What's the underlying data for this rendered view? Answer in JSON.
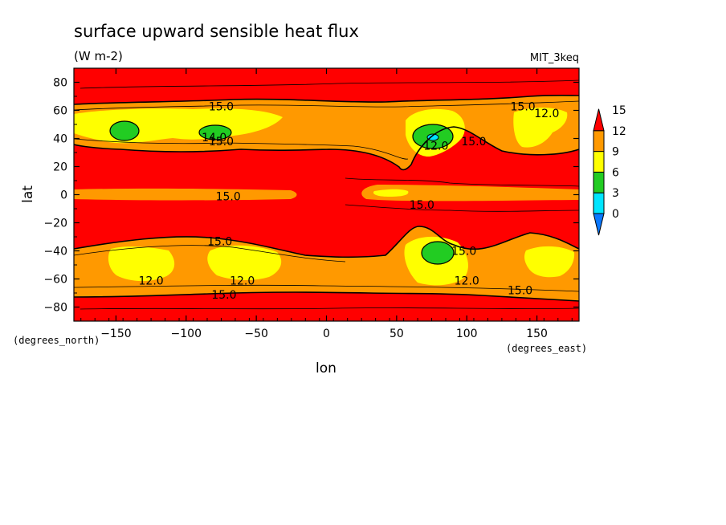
{
  "chart_data": {
    "type": "heatmap",
    "title": "surface upward sensible heat flux",
    "units": "(W m-2)",
    "model": "MIT_3keq",
    "xlabel": "lon",
    "ylabel": "lat",
    "x_units": "(degrees_east)",
    "y_units": "(degrees_north)",
    "xlim": [
      -180,
      180
    ],
    "ylim": [
      -90,
      90
    ],
    "x_ticks": [
      -150,
      -100,
      -50,
      0,
      50,
      100,
      150
    ],
    "y_ticks": [
      80,
      60,
      40,
      20,
      0,
      -20,
      -40,
      -60,
      -80
    ],
    "x_tick_labels": [
      "−150",
      "−100",
      "−50",
      "0",
      "50",
      "100",
      "150"
    ],
    "y_tick_labels": [
      "80",
      "60",
      "40",
      "20",
      "0",
      "−20",
      "−40",
      "−60",
      "−80"
    ],
    "colorbar": {
      "levels": [
        0,
        3,
        6,
        9,
        12,
        15
      ],
      "labels": [
        "0",
        "3",
        "6",
        "9",
        "12",
        "15"
      ],
      "colors": [
        "#0a78ff",
        "#00e5ff",
        "#22cc22",
        "#ffff00",
        "#ff9900",
        "#ff0000"
      ]
    },
    "contour_labels": [
      {
        "text": "15.0",
        "lon": -75,
        "lat": 63
      },
      {
        "text": "15.0",
        "lon": 140,
        "lat": 63
      },
      {
        "text": "12.0",
        "lon": 157,
        "lat": 58
      },
      {
        "text": "14.0",
        "lon": -80,
        "lat": 41
      },
      {
        "text": "15.0",
        "lon": -75,
        "lat": 38
      },
      {
        "text": "12.0",
        "lon": 78,
        "lat": 35
      },
      {
        "text": "15.0",
        "lon": 105,
        "lat": 38
      },
      {
        "text": "15.0",
        "lon": -70,
        "lat": -1
      },
      {
        "text": "15.0",
        "lon": 68,
        "lat": -7
      },
      {
        "text": "15.0",
        "lon": -76,
        "lat": -33
      },
      {
        "text": "15.0",
        "lon": 98,
        "lat": -40
      },
      {
        "text": "12.0",
        "lon": -125,
        "lat": -61
      },
      {
        "text": "12.0",
        "lon": -60,
        "lat": -61
      },
      {
        "text": "12.0",
        "lon": 100,
        "lat": -61
      },
      {
        "text": "15.0",
        "lon": -73,
        "lat": -71
      },
      {
        "text": "15.0",
        "lon": 138,
        "lat": -68
      }
    ]
  }
}
